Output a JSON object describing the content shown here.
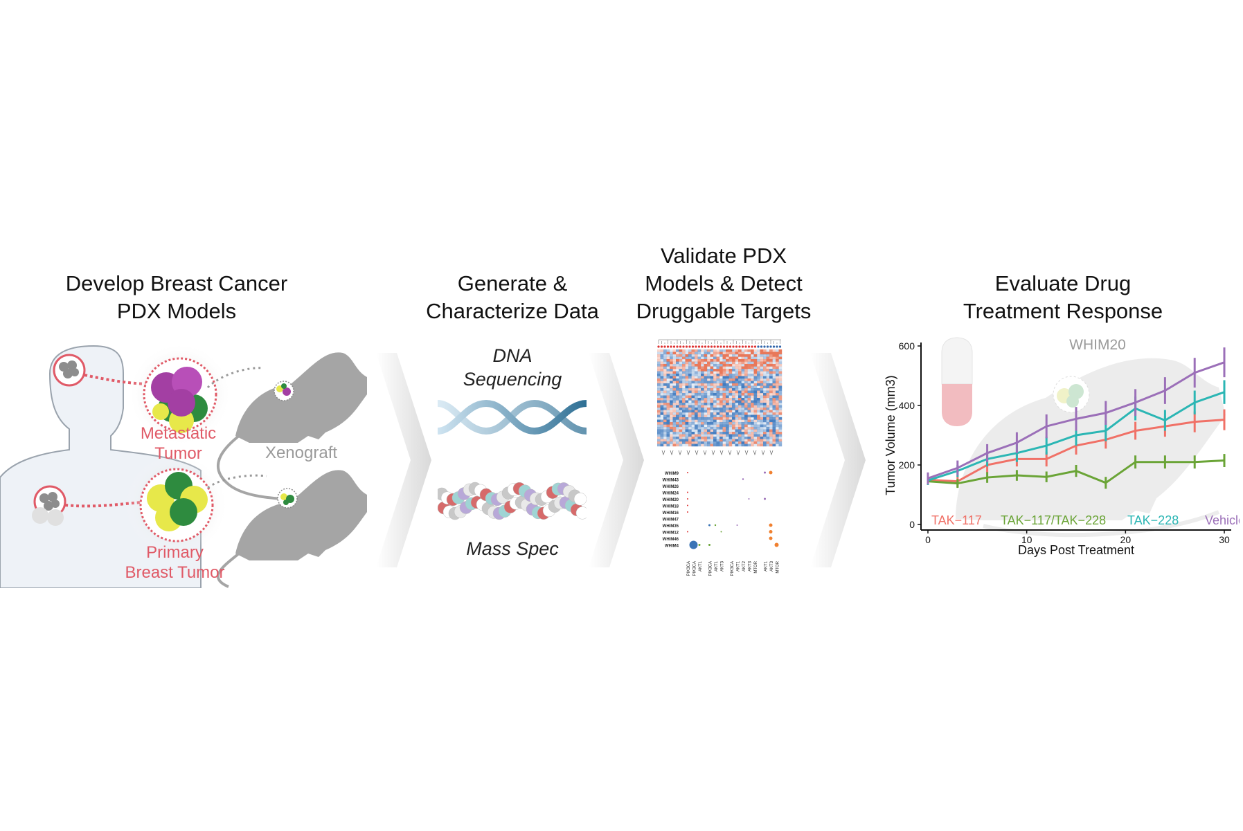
{
  "panels": {
    "develop": {
      "title_line1": "Develop Breast Cancer",
      "title_line2": "PDX Models",
      "metastatic_line1": "Metastatic",
      "metastatic_line2": "Tumor",
      "primary_line1": "Primary",
      "primary_line2": "Breast Tumor",
      "xenograft": "Xenograft"
    },
    "generate": {
      "title_line1": "Generate &",
      "title_line2": "Characterize Data",
      "dna_line1": "DNA",
      "dna_line2": "Sequencing",
      "mass_spec": "Mass Spec"
    },
    "validate": {
      "title_line1": "Validate PDX",
      "title_line2": "Models & Detect",
      "title_line3": "Druggable Targets",
      "dotplot_rows": [
        "WHIM9",
        "WHIM43",
        "WHIM26",
        "WHIM24",
        "WHIM20",
        "WHIM18",
        "WHIM16",
        "WHIM47",
        "WHIM35",
        "WHIM12",
        "WHIM46",
        "WHIM4"
      ],
      "dotplot_cols": [
        "PIK3CA",
        "PIK3CA",
        "AKT1",
        "PIK3CA",
        "AKT1",
        "AKT3",
        "PIK3CA",
        "AKT1",
        "AKT2",
        "AKT3",
        "MTOR",
        "AKT1",
        "AKT3",
        "MTOR"
      ]
    },
    "evaluate": {
      "title_line1": "Evaluate Drug",
      "title_line2": "Treatment Response"
    }
  },
  "chart_data": {
    "type": "line",
    "title": "WHIM20",
    "xlabel": "Days Post Treatment",
    "ylabel": "Tumor Volume (mm3)",
    "xlim": [
      0,
      30
    ],
    "ylim": [
      0,
      600
    ],
    "xticks": [
      0,
      10,
      20,
      30
    ],
    "yticks": [
      0,
      200,
      400,
      600
    ],
    "x": [
      0,
      3,
      6,
      9,
      12,
      15,
      18,
      21,
      24,
      27,
      30
    ],
    "series": [
      {
        "name": "TAK−117",
        "color": "#f07167",
        "values": [
          150,
          145,
          200,
          220,
          220,
          265,
          285,
          315,
          330,
          345,
          352
        ],
        "err": [
          15,
          20,
          25,
          25,
          25,
          30,
          30,
          30,
          35,
          35,
          35
        ]
      },
      {
        "name": "TAK−117/TAK−228",
        "color": "#6aa436",
        "values": [
          145,
          138,
          158,
          165,
          160,
          180,
          140,
          210,
          210,
          210,
          215
        ],
        "err": [
          12,
          15,
          18,
          18,
          18,
          20,
          20,
          22,
          22,
          22,
          22
        ]
      },
      {
        "name": "TAK−228",
        "color": "#2bb6b4",
        "values": [
          148,
          180,
          220,
          240,
          265,
          300,
          315,
          390,
          350,
          410,
          445
        ],
        "err": [
          15,
          20,
          25,
          30,
          30,
          35,
          35,
          40,
          35,
          40,
          40
        ]
      },
      {
        "name": "Vehicle",
        "color": "#9b6fb8",
        "values": [
          155,
          190,
          240,
          275,
          330,
          355,
          375,
          410,
          450,
          510,
          545
        ],
        "err": [
          20,
          25,
          30,
          35,
          40,
          40,
          40,
          45,
          45,
          50,
          50
        ]
      }
    ],
    "legend_position": "bottom"
  }
}
